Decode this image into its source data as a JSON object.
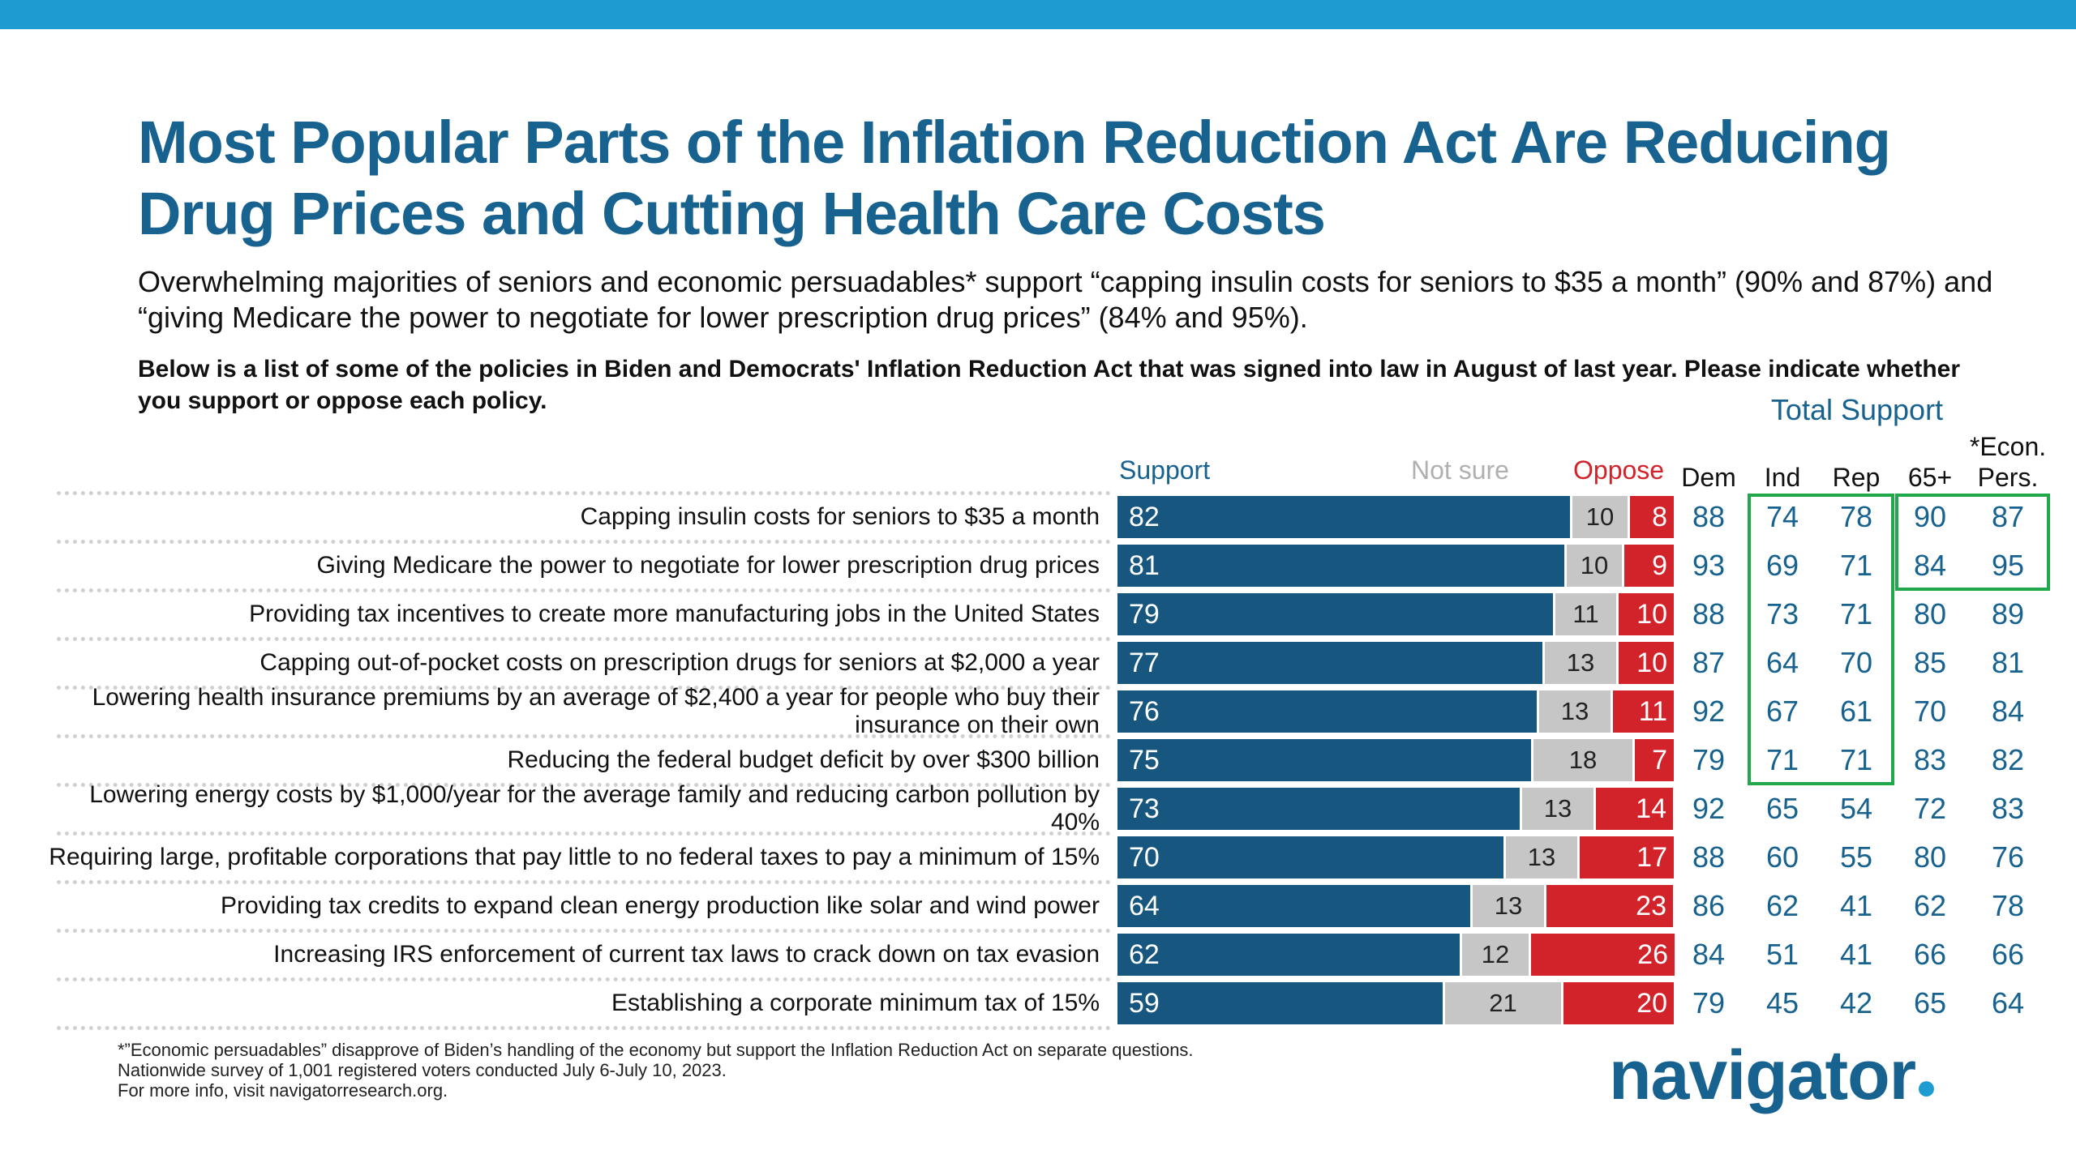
{
  "title": "Most Popular Parts of the Inflation Reduction Act Are Reducing Drug Prices and Cutting Health Care Costs",
  "subtitle": "Overwhelming majorities of seniors and economic persuadables* support “capping insulin costs for seniors to $35 a month” (90% and 87%) and “giving Medicare the power to negotiate for lower prescription drug prices” (84% and 95%).",
  "question": "Below is a list of some of the policies in Biden and Democrats' Inflation Reduction Act that was signed into law in August of last year. Please indicate whether you support or oppose each policy.",
  "total_support_label": "Total Support",
  "columns": {
    "support": "Support",
    "not_sure": "Not sure",
    "oppose": "Oppose",
    "dem": "Dem",
    "ind": "Ind",
    "rep": "Rep",
    "age65": "65+",
    "econ_line1": "*Econ.",
    "econ_line2": "Pers."
  },
  "colors": {
    "support": "#17577f",
    "not_sure": "#c6c6c6",
    "oppose": "#d3232a",
    "highlight_box": "#21a84a",
    "title": "#17628f",
    "top_bar": "#1e9bd0"
  },
  "chart_data": {
    "type": "bar",
    "stacked": true,
    "orientation": "horizontal",
    "xlim": [
      0,
      100
    ],
    "categories": [
      "Capping insulin costs for seniors to $35 a month",
      "Giving Medicare the power to negotiate for lower prescription drug prices",
      "Providing tax incentives to create more manufacturing jobs in the United States",
      "Capping out-of-pocket costs on prescription drugs for seniors at $2,000 a year",
      "Lowering health insurance premiums by an average of $2,400 a year for people who buy their insurance on their own",
      "Reducing the federal budget deficit by over $300 billion",
      "Lowering energy costs by $1,000/year for the average family and reducing carbon pollution by 40%",
      "Requiring large, profitable corporations that pay little to no federal taxes to pay a minimum of 15%",
      "Providing tax credits to expand clean energy production like solar and wind power",
      "Increasing IRS enforcement of current tax laws to crack down on tax evasion",
      "Establishing a corporate minimum tax of 15%"
    ],
    "series": [
      {
        "name": "Support",
        "values": [
          82,
          81,
          79,
          77,
          76,
          75,
          73,
          70,
          64,
          62,
          59
        ]
      },
      {
        "name": "Not sure",
        "values": [
          10,
          10,
          11,
          13,
          13,
          18,
          13,
          13,
          13,
          12,
          21
        ]
      },
      {
        "name": "Oppose",
        "values": [
          8,
          9,
          10,
          10,
          11,
          7,
          14,
          17,
          23,
          26,
          20
        ]
      }
    ],
    "total_support": {
      "Dem": [
        88,
        93,
        88,
        87,
        92,
        79,
        92,
        88,
        86,
        84,
        79
      ],
      "Ind": [
        74,
        69,
        73,
        64,
        67,
        71,
        65,
        60,
        62,
        51,
        45
      ],
      "Rep": [
        78,
        71,
        71,
        70,
        61,
        71,
        54,
        55,
        41,
        41,
        42
      ],
      "65+": [
        90,
        84,
        80,
        85,
        70,
        83,
        72,
        80,
        62,
        66,
        65
      ],
      "*Econ. Pers.": [
        87,
        95,
        89,
        81,
        84,
        82,
        83,
        76,
        78,
        66,
        64
      ]
    },
    "highlight_boxes": [
      {
        "columns": [
          "Ind",
          "Rep"
        ],
        "rows": [
          0,
          5
        ]
      },
      {
        "columns": [
          "65+",
          "*Econ. Pers."
        ],
        "rows": [
          0,
          1
        ]
      }
    ]
  },
  "footnotes": [
    "*”Economic persuadables” disapprove of Biden’s handling of the economy but support the Inflation Reduction Act on separate questions.",
    "Nationwide survey of 1,001 registered voters conducted July 6-July 10, 2023.",
    "For more info, visit navigatorresearch.org."
  ],
  "logo_text": "navigator",
  "logo_dot": "●"
}
